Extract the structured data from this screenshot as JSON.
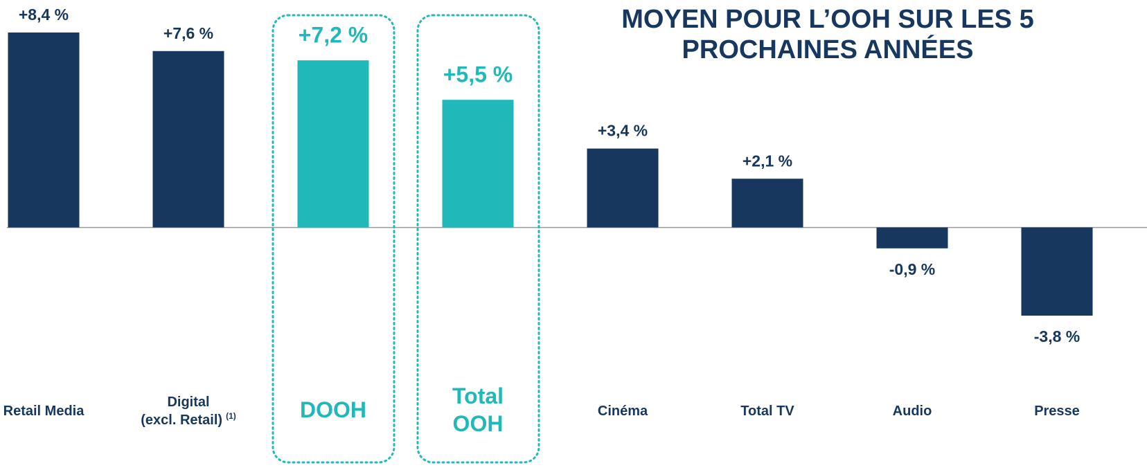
{
  "chart_data": {
    "type": "bar",
    "title_lines": [
      "MOYEN POUR L’OOH SUR LES 5",
      "PROCHAINES ANNÉES"
    ],
    "categories": [
      "Retail Media",
      "Digital\n(excl. Retail)",
      "DOOH",
      "Total\nOOH",
      "Cinéma",
      "Total TV",
      "Audio",
      "Presse"
    ],
    "category_note": {
      "category": 1,
      "label": "(1)"
    },
    "values": [
      8.4,
      7.6,
      7.2,
      5.5,
      3.4,
      2.1,
      -0.9,
      -3.8
    ],
    "value_labels": [
      "+8,4 %",
      "+7,6 %",
      "+7,2 %",
      "+5,5 %",
      "+3,4 %",
      "+2,1 %",
      "-0,9 %",
      "-3,8 %"
    ],
    "colors": [
      "#17375e",
      "#17375e",
      "#20b8b8",
      "#20b8b8",
      "#17375e",
      "#17375e",
      "#17375e",
      "#17375e"
    ],
    "highlighted": [
      false,
      false,
      true,
      true,
      false,
      false,
      false,
      false
    ],
    "ylim": [
      -10.45,
      9.8
    ]
  }
}
